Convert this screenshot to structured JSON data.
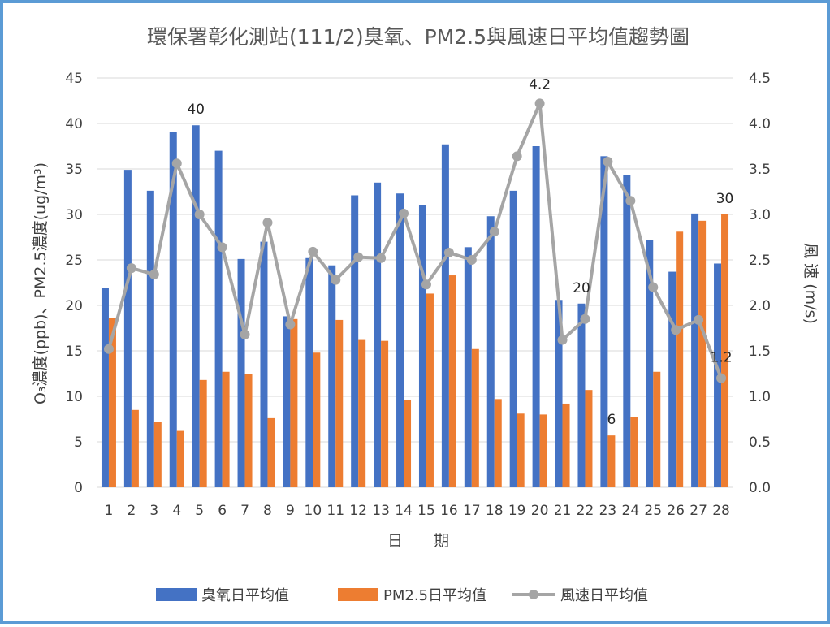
{
  "chart_data": {
    "type": "bar",
    "title": "環保署彰化測站(111/2)臭氧、PM2.5與風速日平均值趨勢圖",
    "xlabel": "日　　期",
    "ylabel": "O₃濃度(ppb)、PM2.5濃度(ug/m³)",
    "y2label": "風 速 (m/s)",
    "ylim": [
      0,
      45
    ],
    "y2lim": [
      0,
      4.5
    ],
    "yticks": [
      "0",
      "5",
      "10",
      "15",
      "20",
      "25",
      "30",
      "35",
      "40",
      "45"
    ],
    "y2ticks": [
      "0.0",
      "0.5",
      "1.0",
      "1.5",
      "2.0",
      "2.5",
      "3.0",
      "3.5",
      "4.0",
      "4.5"
    ],
    "categories": [
      "1",
      "2",
      "3",
      "4",
      "5",
      "6",
      "7",
      "8",
      "9",
      "10",
      "11",
      "12",
      "13",
      "14",
      "15",
      "16",
      "17",
      "18",
      "19",
      "20",
      "21",
      "22",
      "23",
      "24",
      "25",
      "26",
      "27",
      "28"
    ],
    "series": [
      {
        "name": "臭氧日平均值",
        "type": "bar",
        "axis": "left",
        "color": "#4472c4",
        "values": [
          21.9,
          34.9,
          32.6,
          39.1,
          39.8,
          37.0,
          25.1,
          27.0,
          18.8,
          25.2,
          24.4,
          32.1,
          33.5,
          32.3,
          31.0,
          37.7,
          26.4,
          29.8,
          32.6,
          37.5,
          20.6,
          20.2,
          36.4,
          34.3,
          27.2,
          23.7,
          30.1,
          24.6
        ]
      },
      {
        "name": "PM2.5日平均值",
        "type": "bar",
        "axis": "left",
        "color": "#ed7d31",
        "values": [
          18.6,
          8.5,
          7.2,
          6.2,
          11.8,
          12.7,
          12.5,
          7.6,
          18.5,
          14.8,
          18.4,
          16.2,
          16.1,
          9.6,
          21.3,
          23.3,
          15.2,
          9.7,
          8.1,
          8.0,
          9.2,
          10.7,
          5.7,
          7.7,
          12.7,
          28.1,
          29.3,
          30.0
        ]
      },
      {
        "name": "風速日平均值",
        "type": "line",
        "axis": "right",
        "color": "#a5a5a5",
        "values": [
          1.52,
          2.41,
          2.34,
          3.56,
          3.0,
          2.64,
          1.68,
          2.91,
          1.79,
          2.59,
          2.28,
          2.53,
          2.52,
          3.01,
          2.23,
          2.58,
          2.5,
          2.81,
          3.64,
          4.22,
          1.62,
          1.85,
          3.58,
          3.15,
          2.2,
          1.73,
          1.84,
          1.2
        ]
      }
    ],
    "annotations": [
      {
        "text": "40",
        "series": 0,
        "index": 4
      },
      {
        "text": "4.2",
        "series": 2,
        "index": 19
      },
      {
        "text": "20",
        "series": 0,
        "index": 21
      },
      {
        "text": "6",
        "series": 1,
        "index": 22
      },
      {
        "text": "30",
        "series": 1,
        "index": 27
      },
      {
        "text": "1.2",
        "series": 2,
        "index": 27
      }
    ]
  }
}
